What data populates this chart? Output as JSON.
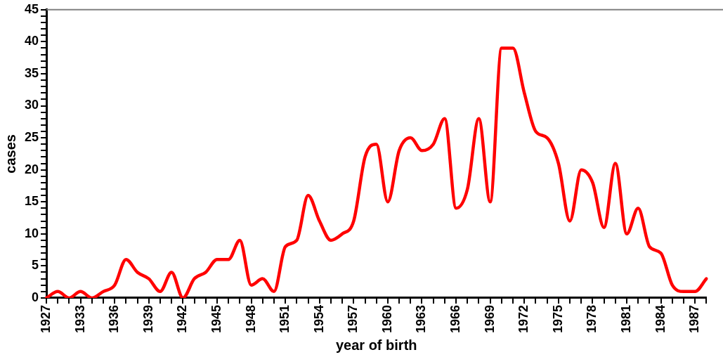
{
  "chart_data": {
    "type": "line",
    "xlabel": "year of birth",
    "ylabel": "cases",
    "categories": [
      "1927",
      null,
      null,
      "1933",
      null,
      null,
      "1936",
      null,
      null,
      "1939",
      null,
      null,
      "1942",
      null,
      null,
      "1945",
      null,
      null,
      "1948",
      null,
      null,
      "1951",
      null,
      null,
      "1954",
      null,
      null,
      "1957",
      null,
      null,
      "1960",
      null,
      null,
      "1963",
      null,
      null,
      "1966",
      null,
      null,
      "1969",
      null,
      null,
      "1972",
      null,
      null,
      "1975",
      null,
      null,
      "1978",
      null,
      null,
      "1981",
      null,
      null,
      "1984",
      null,
      null,
      "1987",
      null
    ],
    "series": [
      {
        "color": "#ff0000",
        "values": [
          0,
          1,
          0,
          1,
          0,
          1,
          2,
          6,
          4,
          3,
          1,
          4,
          0,
          3,
          4,
          6,
          6,
          9,
          2,
          3,
          1,
          8,
          9,
          16,
          12,
          9,
          10,
          12,
          22,
          24,
          15,
          23,
          25,
          23,
          24,
          28,
          14,
          17,
          28,
          15,
          39,
          39,
          32,
          26,
          25,
          21,
          12,
          20,
          18,
          11,
          21,
          10,
          14,
          8,
          7,
          2,
          1,
          1,
          3
        ]
      }
    ],
    "ylim": [
      0,
      45
    ],
    "yticks": [
      0,
      {
        "value": 1,
        "label": null
      },
      {
        "value": 2,
        "label": null
      },
      {
        "value": 3,
        "label": null
      },
      {
        "value": 4,
        "label": null
      },
      5,
      {
        "value": 6,
        "label": null
      },
      {
        "value": 7,
        "label": null
      },
      {
        "value": 8,
        "label": null
      },
      {
        "value": 9,
        "label": null
      },
      10,
      {
        "value": 11,
        "label": null
      },
      {
        "value": 12,
        "label": null
      },
      {
        "value": 13,
        "label": null
      },
      {
        "value": 14,
        "label": null
      },
      15,
      {
        "value": 16,
        "label": null
      },
      {
        "value": 17,
        "label": null
      },
      {
        "value": 18,
        "label": null
      },
      {
        "value": 19,
        "label": null
      },
      20,
      {
        "value": 21,
        "label": null
      },
      {
        "value": 22,
        "label": null
      },
      {
        "value": 23,
        "label": null
      },
      {
        "value": 24,
        "label": null
      },
      25,
      {
        "value": 26,
        "label": null
      },
      {
        "value": 27,
        "label": null
      },
      {
        "value": 28,
        "label": null
      },
      {
        "value": 29,
        "label": null
      },
      30,
      {
        "value": 31,
        "label": null
      },
      {
        "value": 32,
        "label": null
      },
      {
        "value": 33,
        "label": null
      },
      {
        "value": 34,
        "label": null
      },
      35,
      {
        "value": 36,
        "label": null
      },
      {
        "value": 37,
        "label": null
      },
      {
        "value": 38,
        "label": null
      },
      {
        "value": 39,
        "label": null
      },
      40,
      {
        "value": 41,
        "label": null
      },
      {
        "value": 42,
        "label": null
      },
      {
        "value": 43,
        "label": null
      },
      {
        "value": 44,
        "label": null
      },
      45
    ],
    "grid": false,
    "legend": false,
    "marker": "none",
    "line_style": "solid"
  }
}
